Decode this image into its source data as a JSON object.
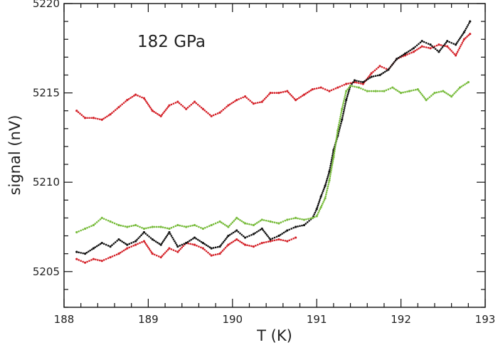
{
  "chart_data": {
    "type": "scatter",
    "title": "",
    "annotation": "182 GPa",
    "xlabel": "T (K)",
    "ylabel": "signal (nV)",
    "xlim": [
      188,
      193
    ],
    "ylim": [
      5203,
      5220
    ],
    "x_ticks": [
      "188",
      "189",
      "190",
      "191",
      "192",
      "193"
    ],
    "y_ticks": [
      "5205",
      "5210",
      "5215",
      "5220"
    ],
    "grid": false,
    "series": [
      {
        "color": "#d42027",
        "x": [
          188.15,
          188.25,
          188.35,
          188.45,
          188.55,
          188.65,
          188.75,
          188.85,
          188.95,
          189.05,
          189.15,
          189.25,
          189.35,
          189.45,
          189.55,
          189.65,
          189.75,
          189.85,
          189.95,
          190.05,
          190.15,
          190.25,
          190.35,
          190.45,
          190.55,
          190.65,
          190.75,
          190.85,
          190.95,
          191.05,
          191.15,
          191.25,
          191.35,
          191.45,
          191.55,
          191.65,
          191.75,
          191.85,
          191.95,
          192.05,
          192.15,
          192.25,
          192.35,
          192.45,
          192.55,
          192.65,
          192.75,
          192.82
        ],
        "y": [
          5214.0,
          5213.6,
          5213.6,
          5213.5,
          5213.8,
          5214.2,
          5214.6,
          5214.9,
          5214.7,
          5214.0,
          5213.7,
          5214.3,
          5214.5,
          5214.1,
          5214.5,
          5214.1,
          5213.7,
          5213.9,
          5214.3,
          5214.6,
          5214.8,
          5214.4,
          5214.5,
          5215.0,
          5215.0,
          5215.1,
          5214.6,
          5214.9,
          5215.2,
          5215.3,
          5215.1,
          5215.3,
          5215.5,
          5215.6,
          5215.5,
          5216.1,
          5216.5,
          5216.3,
          5216.9,
          5217.1,
          5217.3,
          5217.6,
          5217.5,
          5217.7,
          5217.6,
          5217.1,
          5218.0,
          5218.3
        ]
      },
      {
        "color": "#d42027",
        "x": [
          188.15,
          188.25,
          188.35,
          188.45,
          188.55,
          188.65,
          188.75,
          188.85,
          188.95,
          189.05,
          189.15,
          189.25,
          189.35,
          189.45,
          189.55,
          189.65,
          189.75,
          189.85,
          189.95,
          190.05,
          190.15,
          190.25,
          190.35,
          190.45,
          190.55,
          190.65,
          190.75
        ],
        "y": [
          5205.7,
          5205.5,
          5205.7,
          5205.6,
          5205.8,
          5206.0,
          5206.3,
          5206.5,
          5206.7,
          5206.0,
          5205.8,
          5206.3,
          5206.1,
          5206.6,
          5206.5,
          5206.3,
          5205.9,
          5206.0,
          5206.5,
          5206.8,
          5206.5,
          5206.4,
          5206.6,
          5206.7,
          5206.8,
          5206.7,
          5206.9
        ]
      },
      {
        "color": "#111111",
        "x": [
          188.15,
          188.25,
          188.35,
          188.45,
          188.55,
          188.65,
          188.75,
          188.85,
          188.95,
          189.05,
          189.15,
          189.25,
          189.35,
          189.45,
          189.55,
          189.65,
          189.75,
          189.85,
          189.95,
          190.05,
          190.15,
          190.25,
          190.35,
          190.45,
          190.55,
          190.65,
          190.75,
          190.85,
          190.95,
          191.0,
          191.05,
          191.1,
          191.15,
          191.2,
          191.25,
          191.3,
          191.35,
          191.4,
          191.45,
          191.55,
          191.65,
          191.75,
          191.85,
          191.95,
          192.05,
          192.15,
          192.25,
          192.35,
          192.45,
          192.55,
          192.65,
          192.75,
          192.82
        ],
        "y": [
          5206.1,
          5206.0,
          5206.3,
          5206.6,
          5206.4,
          5206.8,
          5206.5,
          5206.7,
          5207.2,
          5206.8,
          5206.5,
          5207.2,
          5206.4,
          5206.6,
          5206.9,
          5206.6,
          5206.3,
          5206.4,
          5207.0,
          5207.3,
          5206.9,
          5207.1,
          5207.4,
          5206.8,
          5207.0,
          5207.3,
          5207.5,
          5207.6,
          5208.0,
          5208.5,
          5209.2,
          5209.8,
          5210.6,
          5211.8,
          5212.6,
          5213.5,
          5214.6,
          5215.4,
          5215.7,
          5215.6,
          5215.9,
          5216.0,
          5216.3,
          5216.9,
          5217.2,
          5217.5,
          5217.9,
          5217.7,
          5217.3,
          5217.9,
          5217.7,
          5218.4,
          5219.0
        ]
      },
      {
        "color": "#77bb3a",
        "x": [
          188.15,
          188.25,
          188.35,
          188.45,
          188.55,
          188.65,
          188.75,
          188.85,
          188.95,
          189.05,
          189.15,
          189.25,
          189.35,
          189.45,
          189.55,
          189.65,
          189.75,
          189.85,
          189.95,
          190.05,
          190.15,
          190.25,
          190.35,
          190.45,
          190.55,
          190.65,
          190.75,
          190.85,
          190.95,
          191.0,
          191.05,
          191.1,
          191.15,
          191.2,
          191.25,
          191.3,
          191.35,
          191.4,
          191.5,
          191.6,
          191.7,
          191.8,
          191.9,
          192.0,
          192.1,
          192.2,
          192.3,
          192.4,
          192.5,
          192.6,
          192.7,
          192.8
        ],
        "y": [
          5207.2,
          5207.4,
          5207.6,
          5208.0,
          5207.8,
          5207.6,
          5207.5,
          5207.6,
          5207.4,
          5207.5,
          5207.5,
          5207.4,
          5207.6,
          5207.5,
          5207.6,
          5207.4,
          5207.6,
          5207.8,
          5207.5,
          5208.0,
          5207.7,
          5207.6,
          5207.9,
          5207.8,
          5207.7,
          5207.9,
          5208.0,
          5207.9,
          5208.0,
          5208.1,
          5208.6,
          5209.1,
          5210.1,
          5211.4,
          5212.9,
          5214.1,
          5215.1,
          5215.4,
          5215.3,
          5215.1,
          5215.1,
          5215.1,
          5215.3,
          5215.0,
          5215.1,
          5215.2,
          5214.6,
          5215.0,
          5215.1,
          5214.8,
          5215.3,
          5215.6
        ]
      }
    ]
  }
}
